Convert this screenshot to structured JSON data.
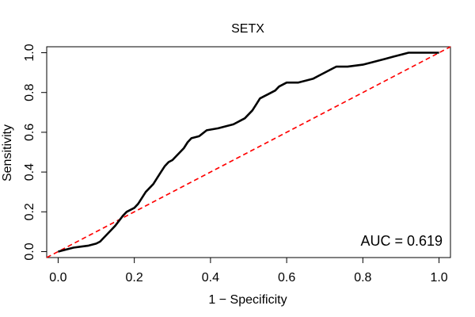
{
  "chart_data": {
    "type": "line",
    "title": "SETX",
    "xlabel": "1 − Specificity",
    "ylabel": "Sensitivity",
    "xlim": [
      -0.03,
      1.03
    ],
    "ylim": [
      -0.03,
      1.03
    ],
    "x_ticks": [
      0.0,
      0.2,
      0.4,
      0.6,
      0.8,
      1.0
    ],
    "x_tick_labels": [
      "0.0",
      "0.2",
      "0.4",
      "0.6",
      "0.8",
      "1.0"
    ],
    "y_ticks": [
      0.0,
      0.2,
      0.4,
      0.6,
      0.8,
      1.0
    ],
    "y_tick_labels": [
      "0.0",
      "0.2",
      "0.4",
      "0.6",
      "0.8",
      "1.0"
    ],
    "grid": false,
    "annotation": "AUC = 0.619",
    "series": [
      {
        "color": "#000000",
        "style": "solid",
        "points": [
          [
            0.0,
            0.0
          ],
          [
            0.02,
            0.01
          ],
          [
            0.04,
            0.02
          ],
          [
            0.06,
            0.025
          ],
          [
            0.08,
            0.03
          ],
          [
            0.1,
            0.04
          ],
          [
            0.11,
            0.05
          ],
          [
            0.12,
            0.07
          ],
          [
            0.13,
            0.09
          ],
          [
            0.14,
            0.11
          ],
          [
            0.15,
            0.13
          ],
          [
            0.16,
            0.155
          ],
          [
            0.17,
            0.18
          ],
          [
            0.18,
            0.2
          ],
          [
            0.19,
            0.21
          ],
          [
            0.2,
            0.22
          ],
          [
            0.21,
            0.24
          ],
          [
            0.22,
            0.27
          ],
          [
            0.23,
            0.3
          ],
          [
            0.24,
            0.32
          ],
          [
            0.25,
            0.34
          ],
          [
            0.26,
            0.37
          ],
          [
            0.27,
            0.4
          ],
          [
            0.28,
            0.43
          ],
          [
            0.29,
            0.45
          ],
          [
            0.3,
            0.46
          ],
          [
            0.31,
            0.48
          ],
          [
            0.32,
            0.5
          ],
          [
            0.33,
            0.52
          ],
          [
            0.34,
            0.55
          ],
          [
            0.35,
            0.57
          ],
          [
            0.37,
            0.58
          ],
          [
            0.39,
            0.61
          ],
          [
            0.42,
            0.62
          ],
          [
            0.44,
            0.63
          ],
          [
            0.46,
            0.64
          ],
          [
            0.47,
            0.65
          ],
          [
            0.48,
            0.66
          ],
          [
            0.49,
            0.67
          ],
          [
            0.5,
            0.69
          ],
          [
            0.51,
            0.71
          ],
          [
            0.52,
            0.74
          ],
          [
            0.53,
            0.77
          ],
          [
            0.54,
            0.78
          ],
          [
            0.55,
            0.79
          ],
          [
            0.56,
            0.8
          ],
          [
            0.57,
            0.81
          ],
          [
            0.58,
            0.83
          ],
          [
            0.59,
            0.84
          ],
          [
            0.6,
            0.85
          ],
          [
            0.63,
            0.85
          ],
          [
            0.65,
            0.86
          ],
          [
            0.67,
            0.87
          ],
          [
            0.68,
            0.88
          ],
          [
            0.69,
            0.89
          ],
          [
            0.7,
            0.9
          ],
          [
            0.71,
            0.91
          ],
          [
            0.72,
            0.92
          ],
          [
            0.73,
            0.93
          ],
          [
            0.76,
            0.93
          ],
          [
            0.8,
            0.94
          ],
          [
            0.82,
            0.95
          ],
          [
            0.84,
            0.96
          ],
          [
            0.86,
            0.97
          ],
          [
            0.88,
            0.98
          ],
          [
            0.9,
            0.99
          ],
          [
            0.92,
            1.0
          ],
          [
            1.0,
            1.0
          ]
        ]
      },
      {
        "color": "#ff0000",
        "style": "dashed",
        "points": [
          [
            -0.03,
            -0.03
          ],
          [
            1.03,
            1.03
          ]
        ]
      }
    ]
  }
}
